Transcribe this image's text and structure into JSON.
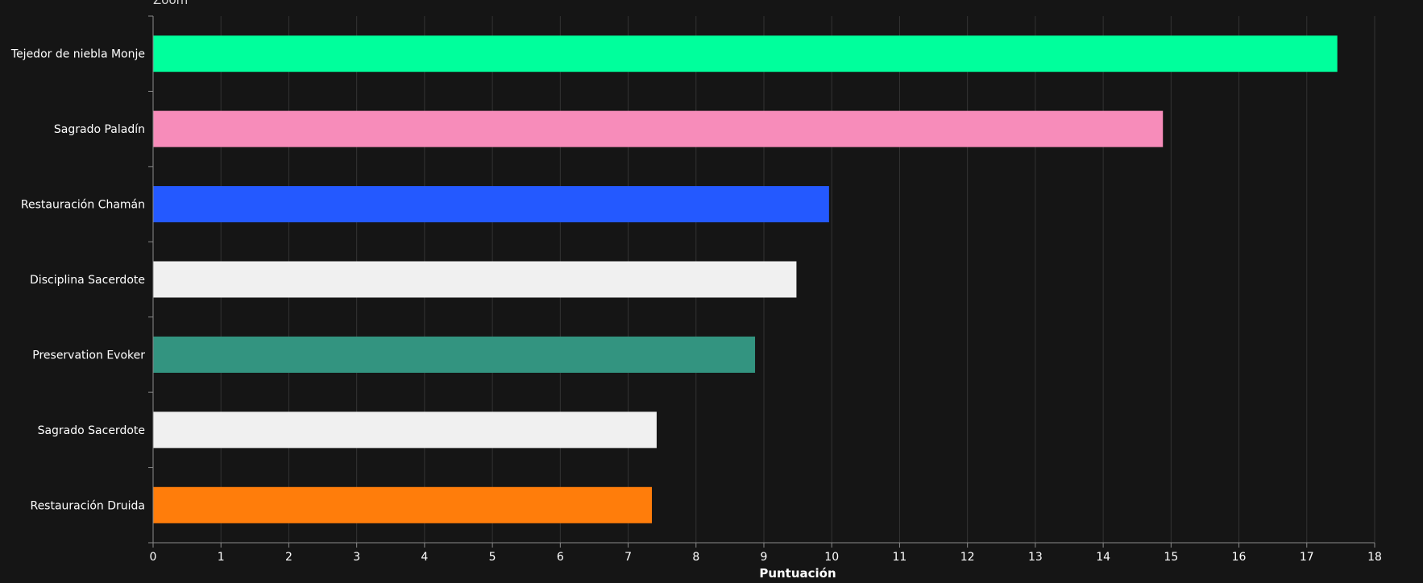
{
  "toolbar": {
    "zoom_label": "Zoom"
  },
  "colors": {
    "background": "#151515",
    "grid": "#333333",
    "axis": "#8a8a8a",
    "text": "#ffffff"
  },
  "chart_data": {
    "type": "bar",
    "orientation": "horizontal",
    "xlabel": "Puntuación",
    "xlim": [
      0,
      18
    ],
    "xticks": [
      0,
      1,
      2,
      3,
      4,
      5,
      6,
      7,
      8,
      9,
      10,
      11,
      12,
      13,
      14,
      15,
      16,
      17,
      18
    ],
    "grid": true,
    "categories": [
      "Tejedor de niebla Monje",
      "Sagrado Paladín",
      "Restauración Chamán",
      "Disciplina Sacerdote",
      "Preservation Evoker",
      "Sagrado Sacerdote",
      "Restauración Druida"
    ],
    "values": [
      17.45,
      14.88,
      9.96,
      9.48,
      8.87,
      7.42,
      7.35
    ],
    "bar_colors": [
      "#00ff9c",
      "#f78cba",
      "#2459ff",
      "#f0f0f0",
      "#339480",
      "#f0f0f0",
      "#ff7d0b"
    ]
  }
}
